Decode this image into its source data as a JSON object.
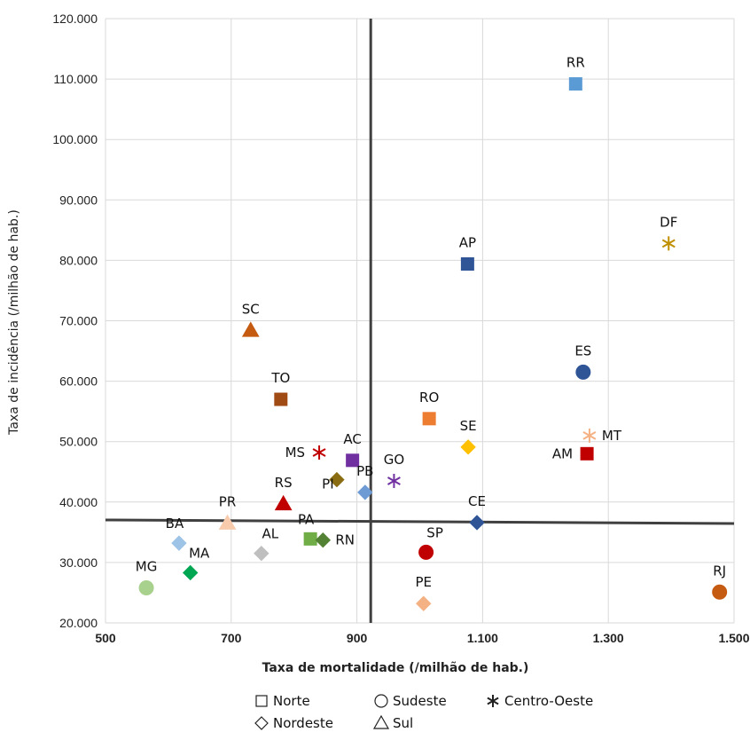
{
  "chart_data": {
    "type": "scatter",
    "title": "",
    "xlabel": "Taxa de mortalidade (/milhão de hab.)",
    "ylabel": "Taxa de incidência (/milhão de hab.)",
    "xlim": [
      500,
      1500
    ],
    "ylim": [
      20000,
      120000
    ],
    "x_ticks": [
      500,
      700,
      900,
      1100,
      1300,
      1500
    ],
    "x_tick_labels": [
      "500",
      "700",
      "900",
      "1.100",
      "1.300",
      "1.500"
    ],
    "y_ticks": [
      20000,
      30000,
      40000,
      50000,
      60000,
      70000,
      80000,
      90000,
      100000,
      110000,
      120000
    ],
    "y_tick_labels": [
      "20.000",
      "30.000",
      "40.000",
      "50.000",
      "60.000",
      "70.000",
      "80.000",
      "90.000",
      "100.000",
      "110.000",
      "120.000"
    ],
    "grid": true,
    "reference_lines": {
      "x": 922,
      "y": 36600
    },
    "legend": {
      "placement": "bottom",
      "items": [
        {
          "label": "Norte",
          "marker": "square"
        },
        {
          "label": "Sudeste",
          "marker": "circle"
        },
        {
          "label": "Centro-Oeste",
          "marker": "asterisk"
        },
        {
          "label": "Nordeste",
          "marker": "diamond"
        },
        {
          "label": "Sul",
          "marker": "triangle"
        }
      ]
    },
    "points": [
      {
        "label": "RR",
        "x": 1248,
        "y": 109200,
        "region": "Norte",
        "marker": "square",
        "color": "#5b9bd5",
        "label_pos": "above"
      },
      {
        "label": "AP",
        "x": 1076,
        "y": 79400,
        "region": "Norte",
        "marker": "square",
        "color": "#2f5597",
        "label_pos": "above"
      },
      {
        "label": "TO",
        "x": 779,
        "y": 57000,
        "region": "Norte",
        "marker": "square",
        "color": "#a04a14",
        "label_pos": "above"
      },
      {
        "label": "RO",
        "x": 1015,
        "y": 53800,
        "region": "Norte",
        "marker": "square",
        "color": "#ed7d31",
        "label_pos": "above"
      },
      {
        "label": "AC",
        "x": 893,
        "y": 46900,
        "region": "Norte",
        "marker": "square",
        "color": "#7030a0",
        "label_pos": "above"
      },
      {
        "label": "AM",
        "x": 1266,
        "y": 48000,
        "region": "Norte",
        "marker": "square",
        "color": "#c00000",
        "label_pos": "left"
      },
      {
        "label": "PA",
        "x": 826,
        "y": 33900,
        "region": "Norte",
        "marker": "square",
        "color": "#70ad47",
        "label_pos": "above-left"
      },
      {
        "label": "ES",
        "x": 1260,
        "y": 61500,
        "region": "Sudeste",
        "marker": "circle",
        "color": "#2f5597",
        "label_pos": "above"
      },
      {
        "label": "SP",
        "x": 1010,
        "y": 31700,
        "region": "Sudeste",
        "marker": "circle",
        "color": "#c00000",
        "label_pos": "above-right"
      },
      {
        "label": "MG",
        "x": 565,
        "y": 25800,
        "region": "Sudeste",
        "marker": "circle",
        "color": "#a9d18e",
        "label_pos": "above"
      },
      {
        "label": "RJ",
        "x": 1477,
        "y": 25100,
        "region": "Sudeste",
        "marker": "circle",
        "color": "#c55a11",
        "label_pos": "above"
      },
      {
        "label": "DF",
        "x": 1396,
        "y": 82800,
        "region": "Centro-Oeste",
        "marker": "asterisk",
        "color": "#bf8f00",
        "label_pos": "above"
      },
      {
        "label": "MT",
        "x": 1270,
        "y": 51000,
        "region": "Centro-Oeste",
        "marker": "asterisk",
        "color": "#f4b183",
        "label_pos": "right"
      },
      {
        "label": "MS",
        "x": 840,
        "y": 48200,
        "region": "Centro-Oeste",
        "marker": "asterisk",
        "color": "#c00000",
        "label_pos": "left"
      },
      {
        "label": "GO",
        "x": 959,
        "y": 43500,
        "region": "Centro-Oeste",
        "marker": "asterisk",
        "color": "#7030a0",
        "label_pos": "above"
      },
      {
        "label": "SE",
        "x": 1077,
        "y": 49100,
        "region": "Nordeste",
        "marker": "diamond",
        "color": "#ffc000",
        "label_pos": "above"
      },
      {
        "label": "PI",
        "x": 868,
        "y": 43700,
        "region": "Nordeste",
        "marker": "diamond",
        "color": "#8a6d12",
        "label_pos": "left-below"
      },
      {
        "label": "PB",
        "x": 913,
        "y": 41600,
        "region": "Nordeste",
        "marker": "diamond",
        "color": "#6f9bd5",
        "label_pos": "above"
      },
      {
        "label": "CE",
        "x": 1091,
        "y": 36600,
        "region": "Nordeste",
        "marker": "diamond",
        "color": "#2f5597",
        "label_pos": "above"
      },
      {
        "label": "BA",
        "x": 617,
        "y": 33200,
        "region": "Nordeste",
        "marker": "diamond",
        "color": "#9dc3e6",
        "label_pos": "above-left"
      },
      {
        "label": "AL",
        "x": 748,
        "y": 31500,
        "region": "Nordeste",
        "marker": "diamond",
        "color": "#bfbfbf",
        "label_pos": "above-right"
      },
      {
        "label": "RN",
        "x": 846,
        "y": 33700,
        "region": "Nordeste",
        "marker": "diamond",
        "color": "#548235",
        "label_pos": "right"
      },
      {
        "label": "MA",
        "x": 635,
        "y": 28300,
        "region": "Nordeste",
        "marker": "diamond",
        "color": "#00a651",
        "label_pos": "above-right"
      },
      {
        "label": "PE",
        "x": 1006,
        "y": 23200,
        "region": "Nordeste",
        "marker": "diamond",
        "color": "#f4b183",
        "label_pos": "above"
      },
      {
        "label": "SC",
        "x": 731,
        "y": 68400,
        "region": "Sul",
        "marker": "triangle",
        "color": "#c55a11",
        "label_pos": "above"
      },
      {
        "label": "RS",
        "x": 783,
        "y": 39700,
        "region": "Sul",
        "marker": "triangle",
        "color": "#c00000",
        "label_pos": "above"
      },
      {
        "label": "PR",
        "x": 694,
        "y": 36500,
        "region": "Sul",
        "marker": "triangle",
        "color": "#f8cbad",
        "label_pos": "above"
      }
    ]
  }
}
